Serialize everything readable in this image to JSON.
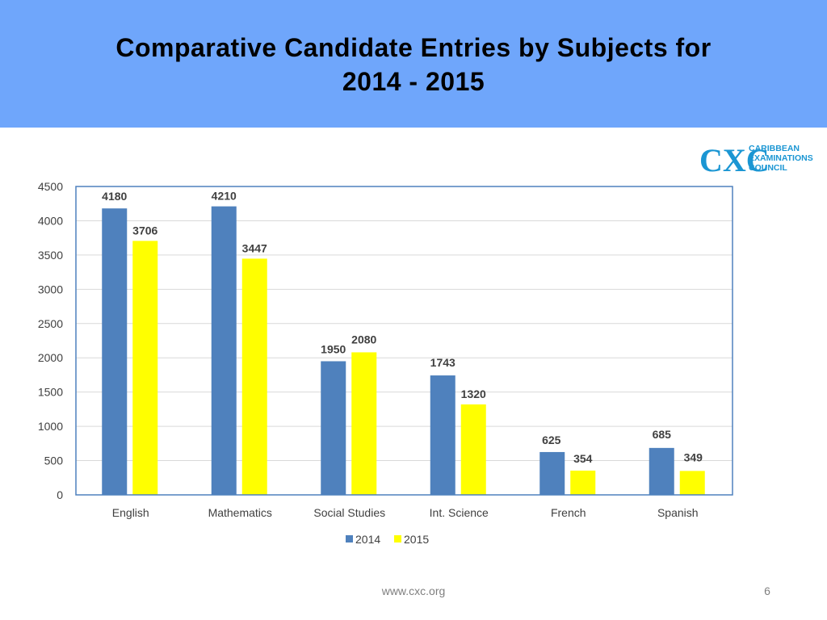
{
  "slide": {
    "title_line1": "Comparative Candidate Entries by Subjects for",
    "title_line2": "2014 - 2015",
    "footer_url": "www.cxc.org",
    "page_number": "6"
  },
  "logo": {
    "monogram": "CXC",
    "line1": "CARIBBEAN",
    "line2": "EXAMINATIONS",
    "line3": "COUNCIL"
  },
  "colors": {
    "header_bg": "#6fa6fb",
    "series_2014": "#4f81bd",
    "series_2015": "#ffff00",
    "logo": "#1b96d3"
  },
  "chart_data": {
    "type": "bar",
    "title": "",
    "xlabel": "",
    "ylabel": "",
    "categories": [
      "English",
      "Mathematics",
      "Social Studies",
      "Int. Science",
      "French",
      "Spanish"
    ],
    "series": [
      {
        "name": "2014",
        "values": [
          4180,
          4210,
          1950,
          1743,
          625,
          685
        ]
      },
      {
        "name": "2015",
        "values": [
          3706,
          3447,
          2080,
          1320,
          354,
          349
        ]
      }
    ],
    "ylim": [
      0,
      4500
    ],
    "yticks": [
      0,
      500,
      1000,
      1500,
      2000,
      2500,
      3000,
      3500,
      4000,
      4500
    ],
    "grid": true,
    "legend": "bottom",
    "data_labels": true
  }
}
